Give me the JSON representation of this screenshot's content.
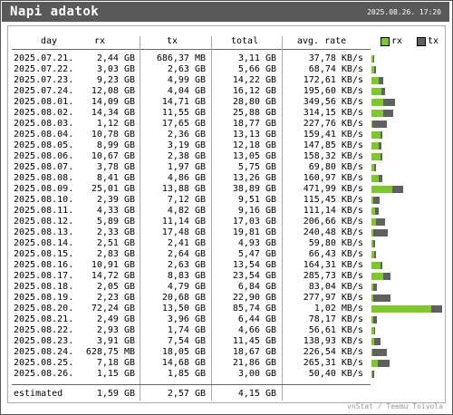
{
  "window": {
    "title": "Napi adatok",
    "datetime": "2025.08.26. 17:20"
  },
  "columns": {
    "day": "day",
    "rx": "rx",
    "tx": "tx",
    "total": "total",
    "avg": "avg. rate"
  },
  "legend": {
    "rx_label": "rx",
    "tx_label": "tx",
    "rx_color": "#7ec82b",
    "tx_color": "#606060"
  },
  "rows": [
    {
      "day": "2025.07.21.",
      "rx": "2,44 GB",
      "tx": "686,37 MB",
      "total": "3,11 GB",
      "avg": "37,78 KB/s",
      "rx_gb": 2.44,
      "tx_gb": 0.67
    },
    {
      "day": "2025.07.22.",
      "rx": "3,03 GB",
      "tx": "2,63 GB",
      "total": "5,66 GB",
      "avg": "68,74 KB/s",
      "rx_gb": 3.03,
      "tx_gb": 2.63
    },
    {
      "day": "2025.07.23.",
      "rx": "9,23 GB",
      "tx": "4,99 GB",
      "total": "14,22 GB",
      "avg": "172,61 KB/s",
      "rx_gb": 9.23,
      "tx_gb": 4.99
    },
    {
      "day": "2025.07.24.",
      "rx": "12,08 GB",
      "tx": "4,04 GB",
      "total": "16,12 GB",
      "avg": "195,60 KB/s",
      "rx_gb": 12.08,
      "tx_gb": 4.04
    },
    {
      "day": "2025.08.01.",
      "rx": "14,09 GB",
      "tx": "14,71 GB",
      "total": "28,80 GB",
      "avg": "349,56 KB/s",
      "rx_gb": 14.09,
      "tx_gb": 14.71
    },
    {
      "day": "2025.08.02.",
      "rx": "14,34 GB",
      "tx": "11,55 GB",
      "total": "25,88 GB",
      "avg": "314,15 KB/s",
      "rx_gb": 14.34,
      "tx_gb": 11.55
    },
    {
      "day": "2025.08.03.",
      "rx": "1,12 GB",
      "tx": "17,65 GB",
      "total": "18,77 GB",
      "avg": "227,76 KB/s",
      "rx_gb": 1.12,
      "tx_gb": 17.65
    },
    {
      "day": "2025.08.04.",
      "rx": "10,78 GB",
      "tx": "2,36 GB",
      "total": "13,13 GB",
      "avg": "159,41 KB/s",
      "rx_gb": 10.78,
      "tx_gb": 2.36
    },
    {
      "day": "2025.08.05.",
      "rx": "8,99 GB",
      "tx": "3,19 GB",
      "total": "12,18 GB",
      "avg": "147,85 KB/s",
      "rx_gb": 8.99,
      "tx_gb": 3.19
    },
    {
      "day": "2025.08.06.",
      "rx": "10,67 GB",
      "tx": "2,38 GB",
      "total": "13,05 GB",
      "avg": "158,32 KB/s",
      "rx_gb": 10.67,
      "tx_gb": 2.38
    },
    {
      "day": "2025.08.07.",
      "rx": "3,78 GB",
      "tx": "1,97 GB",
      "total": "5,75 GB",
      "avg": "69,80 KB/s",
      "rx_gb": 3.78,
      "tx_gb": 1.97
    },
    {
      "day": "2025.08.08.",
      "rx": "8,41 GB",
      "tx": "4,86 GB",
      "total": "13,26 GB",
      "avg": "160,97 KB/s",
      "rx_gb": 8.41,
      "tx_gb": 4.86
    },
    {
      "day": "2025.08.09.",
      "rx": "25,01 GB",
      "tx": "13,88 GB",
      "total": "38,89 GB",
      "avg": "471,99 KB/s",
      "rx_gb": 25.01,
      "tx_gb": 13.88
    },
    {
      "day": "2025.08.10.",
      "rx": "2,39 GB",
      "tx": "7,12 GB",
      "total": "9,51 GB",
      "avg": "115,45 KB/s",
      "rx_gb": 2.39,
      "tx_gb": 7.12
    },
    {
      "day": "2025.08.11.",
      "rx": "4,33 GB",
      "tx": "4,82 GB",
      "total": "9,16 GB",
      "avg": "111,14 KB/s",
      "rx_gb": 4.33,
      "tx_gb": 4.82
    },
    {
      "day": "2025.08.12.",
      "rx": "5,89 GB",
      "tx": "11,14 GB",
      "total": "17,03 GB",
      "avg": "206,66 KB/s",
      "rx_gb": 5.89,
      "tx_gb": 11.14
    },
    {
      "day": "2025.08.13.",
      "rx": "2,33 GB",
      "tx": "17,48 GB",
      "total": "19,81 GB",
      "avg": "240,48 KB/s",
      "rx_gb": 2.33,
      "tx_gb": 17.48
    },
    {
      "day": "2025.08.14.",
      "rx": "2,51 GB",
      "tx": "2,41 GB",
      "total": "4,93 GB",
      "avg": "59,80 KB/s",
      "rx_gb": 2.51,
      "tx_gb": 2.41
    },
    {
      "day": "2025.08.15.",
      "rx": "2,83 GB",
      "tx": "2,64 GB",
      "total": "5,47 GB",
      "avg": "66,43 KB/s",
      "rx_gb": 2.83,
      "tx_gb": 2.64
    },
    {
      "day": "2025.08.16.",
      "rx": "10,91 GB",
      "tx": "2,63 GB",
      "total": "13,54 GB",
      "avg": "164,31 KB/s",
      "rx_gb": 10.91,
      "tx_gb": 2.63
    },
    {
      "day": "2025.08.17.",
      "rx": "14,72 GB",
      "tx": "8,83 GB",
      "total": "23,54 GB",
      "avg": "285,73 KB/s",
      "rx_gb": 14.72,
      "tx_gb": 8.83
    },
    {
      "day": "2025.08.18.",
      "rx": "2,05 GB",
      "tx": "4,79 GB",
      "total": "6,84 GB",
      "avg": "83,04 KB/s",
      "rx_gb": 2.05,
      "tx_gb": 4.79
    },
    {
      "day": "2025.08.19.",
      "rx": "2,23 GB",
      "tx": "20,68 GB",
      "total": "22,90 GB",
      "avg": "277,97 KB/s",
      "rx_gb": 2.23,
      "tx_gb": 20.68
    },
    {
      "day": "2025.08.20.",
      "rx": "72,24 GB",
      "tx": "13,50 GB",
      "total": "85,74 GB",
      "avg": "1,02 MB/s",
      "rx_gb": 72.24,
      "tx_gb": 13.5
    },
    {
      "day": "2025.08.21.",
      "rx": "2,49 GB",
      "tx": "3,96 GB",
      "total": "6,44 GB",
      "avg": "78,17 KB/s",
      "rx_gb": 2.49,
      "tx_gb": 3.96
    },
    {
      "day": "2025.08.22.",
      "rx": "2,93 GB",
      "tx": "1,74 GB",
      "total": "4,66 GB",
      "avg": "56,61 KB/s",
      "rx_gb": 2.93,
      "tx_gb": 1.74
    },
    {
      "day": "2025.08.23.",
      "rx": "3,91 GB",
      "tx": "7,54 GB",
      "total": "11,45 GB",
      "avg": "138,93 KB/s",
      "rx_gb": 3.91,
      "tx_gb": 7.54
    },
    {
      "day": "2025.08.24.",
      "rx": "628,75 MB",
      "tx": "18,05 GB",
      "total": "18,67 GB",
      "avg": "226,54 KB/s",
      "rx_gb": 0.61,
      "tx_gb": 18.05
    },
    {
      "day": "2025.08.25.",
      "rx": "7,18 GB",
      "tx": "14,68 GB",
      "total": "21,86 GB",
      "avg": "265,31 KB/s",
      "rx_gb": 7.18,
      "tx_gb": 14.68
    },
    {
      "day": "2025.08.26.",
      "rx": "1,15 GB",
      "tx": "1,85 GB",
      "total": "3,00 GB",
      "avg": "50,40 KB/s",
      "rx_gb": 1.15,
      "tx_gb": 1.85
    }
  ],
  "estimated": {
    "label": "estimated",
    "rx": "1,59 GB",
    "tx": "2,57 GB",
    "total": "4,15 GB"
  },
  "footer": "vnStat / Teemu Toivola"
}
